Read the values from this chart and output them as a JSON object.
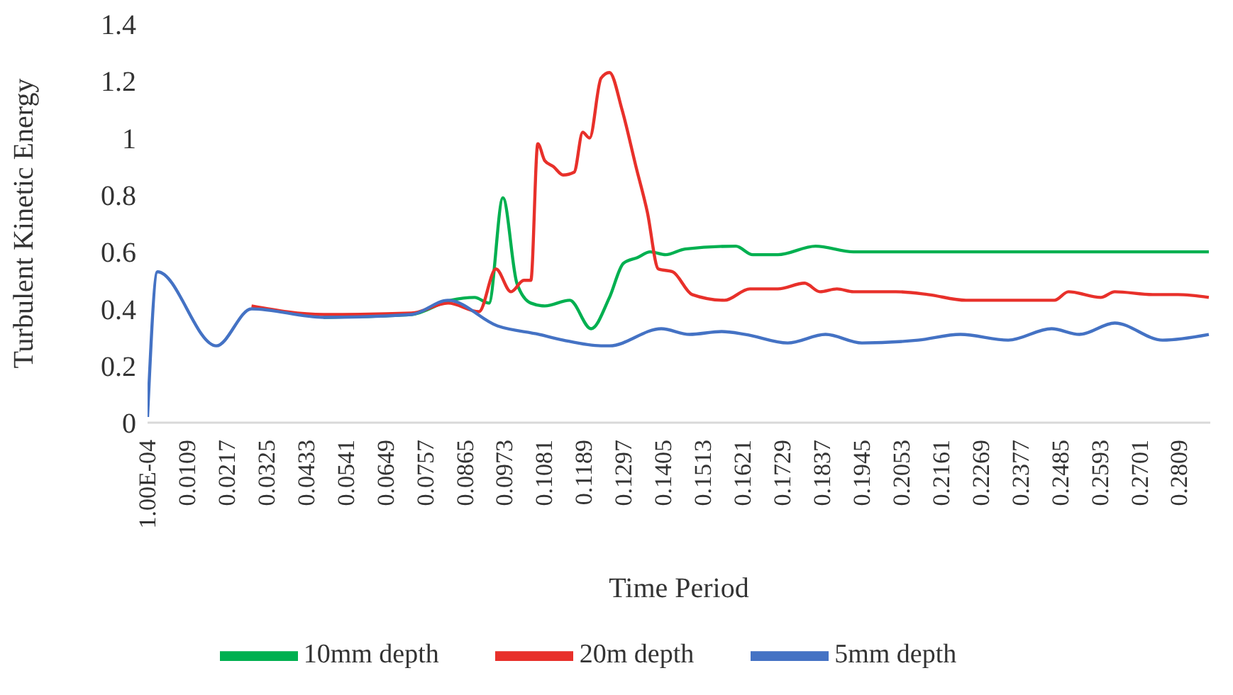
{
  "chart_data": {
    "type": "line",
    "xlabel": "Time Period",
    "ylabel": "Turbulent Kinetic Energy",
    "xlim": [
      0.0001,
      0.2893
    ],
    "ylim": [
      0,
      1.4
    ],
    "yticks": [
      0,
      0.2,
      0.4,
      0.6,
      0.8,
      1,
      1.2,
      1.4
    ],
    "xticks": [
      {
        "value": 0.0001,
        "label": "1.00E-04"
      },
      0.0109,
      0.0217,
      0.0325,
      0.0433,
      0.0541,
      0.0649,
      0.0757,
      0.0865,
      0.0973,
      0.1081,
      0.1189,
      0.1297,
      0.1405,
      0.1513,
      0.1621,
      0.1729,
      0.1837,
      0.1945,
      0.2053,
      0.2161,
      0.2269,
      0.2377,
      0.2485,
      0.2593,
      0.2701,
      0.2809
    ],
    "grid": false,
    "legend": "bottom",
    "marker": "none",
    "series": [
      {
        "name": "10mm depth",
        "color": "#00b050",
        "x": [
          0.048,
          0.0719,
          0.0826,
          0.0891,
          0.093,
          0.0968,
          0.1006,
          0.1044,
          0.1082,
          0.115,
          0.1208,
          0.1258,
          0.1296,
          0.1334,
          0.1369,
          0.1411,
          0.1464,
          0.1602,
          0.1648,
          0.1716,
          0.1819,
          0.1922,
          0.2098,
          0.2889
        ],
        "values": [
          0.37,
          0.38,
          0.43,
          0.44,
          0.42,
          0.79,
          0.49,
          0.42,
          0.41,
          0.43,
          0.33,
          0.44,
          0.56,
          0.58,
          0.6,
          0.59,
          0.61,
          0.62,
          0.59,
          0.59,
          0.62,
          0.6,
          0.6,
          0.6
        ]
      },
      {
        "name": "20m depth",
        "color": "#e8302a",
        "x": [
          0.0284,
          0.048,
          0.0719,
          0.0819,
          0.0903,
          0.0949,
          0.099,
          0.1025,
          0.1044,
          0.1063,
          0.1082,
          0.1105,
          0.1132,
          0.1162,
          0.1185,
          0.1204,
          0.1235,
          0.1258,
          0.1292,
          0.133,
          0.1361,
          0.1391,
          0.143,
          0.1483,
          0.1571,
          0.164,
          0.1716,
          0.1789,
          0.1831,
          0.1877,
          0.1922,
          0.2037,
          0.2125,
          0.2228,
          0.2327,
          0.2469,
          0.2507,
          0.2595,
          0.2633,
          0.2736,
          0.2805,
          0.2889
        ],
        "values": [
          0.41,
          0.38,
          0.385,
          0.42,
          0.39,
          0.54,
          0.46,
          0.5,
          0.5,
          0.98,
          0.92,
          0.9,
          0.87,
          0.88,
          1.02,
          1,
          1.21,
          1.23,
          1.1,
          0.9,
          0.74,
          0.54,
          0.53,
          0.45,
          0.43,
          0.47,
          0.47,
          0.49,
          0.46,
          0.47,
          0.46,
          0.46,
          0.45,
          0.43,
          0.43,
          0.43,
          0.46,
          0.44,
          0.46,
          0.45,
          0.45,
          0.44
        ]
      },
      {
        "name": "5mm depth",
        "color": "#4472c4",
        "x": [
          0.0001,
          0.0028,
          0.0188,
          0.0284,
          0.048,
          0.0719,
          0.0819,
          0.0953,
          0.1067,
          0.1132,
          0.1235,
          0.1258,
          0.1399,
          0.1476,
          0.1563,
          0.1628,
          0.1743,
          0.1846,
          0.1945,
          0.2098,
          0.2213,
          0.2343,
          0.2461,
          0.2537,
          0.2633,
          0.2763,
          0.2889
        ],
        "values": [
          0.02,
          0.53,
          0.27,
          0.4,
          0.37,
          0.38,
          0.43,
          0.34,
          0.31,
          0.29,
          0.27,
          0.27,
          0.33,
          0.31,
          0.32,
          0.31,
          0.28,
          0.31,
          0.28,
          0.29,
          0.31,
          0.29,
          0.33,
          0.31,
          0.35,
          0.29,
          0.31
        ]
      }
    ]
  }
}
